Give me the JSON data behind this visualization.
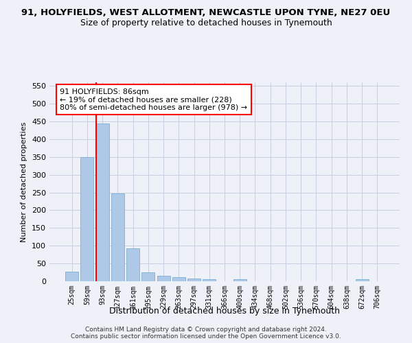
{
  "title": "91, HOLYFIELDS, WEST ALLOTMENT, NEWCASTLE UPON TYNE, NE27 0EU",
  "subtitle": "Size of property relative to detached houses in Tynemouth",
  "xlabel": "Distribution of detached houses by size in Tynemouth",
  "ylabel": "Number of detached properties",
  "categories": [
    "25sqm",
    "59sqm",
    "93sqm",
    "127sqm",
    "161sqm",
    "195sqm",
    "229sqm",
    "263sqm",
    "297sqm",
    "331sqm",
    "366sqm",
    "400sqm",
    "434sqm",
    "468sqm",
    "502sqm",
    "536sqm",
    "570sqm",
    "604sqm",
    "638sqm",
    "672sqm",
    "706sqm"
  ],
  "values": [
    28,
    350,
    445,
    248,
    93,
    25,
    15,
    12,
    7,
    6,
    0,
    5,
    0,
    0,
    0,
    0,
    0,
    0,
    0,
    5,
    0
  ],
  "bar_color": "#aec8e8",
  "bar_edge_color": "#7aafd4",
  "vline_color": "red",
  "vline_index": 2,
  "annotation_text": "91 HOLYFIELDS: 86sqm\n← 19% of detached houses are smaller (228)\n80% of semi-detached houses are larger (978) →",
  "annotation_box_color": "white",
  "annotation_box_edgecolor": "red",
  "ylim": [
    0,
    560
  ],
  "yticks": [
    0,
    50,
    100,
    150,
    200,
    250,
    300,
    350,
    400,
    450,
    500,
    550
  ],
  "footnote": "Contains HM Land Registry data © Crown copyright and database right 2024.\nContains public sector information licensed under the Open Government Licence v3.0.",
  "bg_color": "#eef2f8",
  "grid_color": "#c5cfe0"
}
